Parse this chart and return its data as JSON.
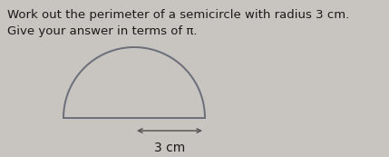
{
  "title_line1": "Work out the perimeter of a semicircle with radius 3 cm.",
  "title_line2": "Give your answer in terms of π.",
  "radius_label": "3 cm",
  "background_color": "#c8c4c0",
  "semicircle_color": "#6a6e7a",
  "text_color": "#1a1a1a",
  "arrow_color": "#5a5a5a",
  "semicircle_linewidth": 1.4,
  "title_fontsize": 9.5,
  "label_fontsize": 10.0
}
